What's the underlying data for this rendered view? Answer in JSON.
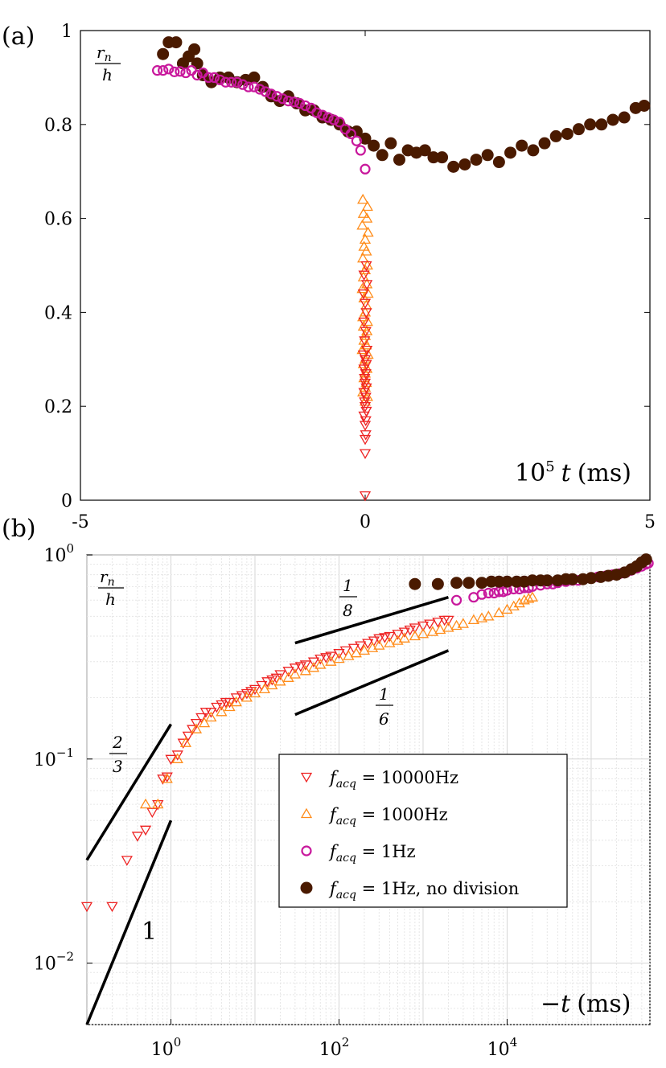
{
  "chart_data": [
    {
      "panel": "(a)",
      "type": "scatter",
      "xlabel": "10⁵ t (ms)",
      "ylabel": "rₙ / h",
      "xlim": [
        -5,
        5
      ],
      "ylim": [
        0,
        1
      ],
      "xticks": [
        "-5",
        "0",
        "5"
      ],
      "yticks": [
        "0",
        "0.2",
        "0.4",
        "0.6",
        "0.8",
        "1"
      ],
      "series": [
        {
          "name": "f_acq = 1Hz, no division",
          "marker": "filled-circle",
          "color": "#4a1a00",
          "x": [
            -3.55,
            -3.45,
            -3.32,
            -3.2,
            -3.1,
            -3.0,
            -2.95,
            -2.85,
            -2.7,
            -2.55,
            -2.4,
            -2.25,
            -2.1,
            -1.95,
            -1.8,
            -1.65,
            -1.5,
            -1.35,
            -1.2,
            -1.05,
            -0.9,
            -0.75,
            -0.6,
            -0.45,
            -0.3,
            -0.15,
            0.0,
            0.15,
            0.3,
            0.45,
            0.6,
            0.75,
            0.9,
            1.05,
            1.2,
            1.35,
            1.55,
            1.75,
            1.95,
            2.15,
            2.35,
            2.55,
            2.75,
            2.95,
            3.15,
            3.35,
            3.55,
            3.75,
            3.95,
            4.15,
            4.35,
            4.55,
            4.75,
            4.9
          ],
          "y": [
            0.95,
            0.975,
            0.975,
            0.93,
            0.945,
            0.96,
            0.93,
            0.905,
            0.89,
            0.9,
            0.9,
            0.89,
            0.895,
            0.9,
            0.88,
            0.86,
            0.85,
            0.86,
            0.845,
            0.83,
            0.83,
            0.815,
            0.81,
            0.8,
            0.785,
            0.785,
            0.77,
            0.755,
            0.735,
            0.76,
            0.725,
            0.745,
            0.74,
            0.745,
            0.73,
            0.73,
            0.71,
            0.715,
            0.725,
            0.735,
            0.72,
            0.74,
            0.755,
            0.745,
            0.76,
            0.775,
            0.78,
            0.79,
            0.8,
            0.8,
            0.81,
            0.815,
            0.835,
            0.84
          ]
        },
        {
          "name": "f_acq = 1Hz",
          "marker": "open-circle",
          "color": "#c8189c",
          "x": [
            -3.65,
            -3.55,
            -3.45,
            -3.35,
            -3.25,
            -3.15,
            -3.05,
            -2.95,
            -2.85,
            -2.75,
            -2.65,
            -2.55,
            -2.45,
            -2.35,
            -2.25,
            -2.15,
            -2.05,
            -1.95,
            -1.85,
            -1.75,
            -1.65,
            -1.55,
            -1.45,
            -1.35,
            -1.25,
            -1.15,
            -1.05,
            -0.95,
            -0.85,
            -0.75,
            -0.65,
            -0.55,
            -0.45,
            -0.35,
            -0.25,
            -0.15,
            -0.08,
            0.0
          ],
          "y": [
            0.915,
            0.915,
            0.918,
            0.912,
            0.913,
            0.91,
            0.915,
            0.905,
            0.91,
            0.9,
            0.9,
            0.895,
            0.89,
            0.89,
            0.89,
            0.885,
            0.88,
            0.88,
            0.875,
            0.87,
            0.865,
            0.86,
            0.855,
            0.85,
            0.848,
            0.845,
            0.84,
            0.835,
            0.825,
            0.82,
            0.815,
            0.81,
            0.805,
            0.79,
            0.78,
            0.765,
            0.745,
            0.705
          ]
        },
        {
          "name": "f_acq = 1000Hz",
          "marker": "triangle-up",
          "color": "#ff8c1a",
          "x": [
            -0.04,
            0.04,
            -0.03,
            0.03,
            -0.05,
            0.05,
            0.0,
            -0.02,
            0.02,
            -0.04,
            0.04,
            0.0,
            -0.03,
            0.03,
            -0.05,
            0.05,
            -0.02,
            0.02,
            0.0,
            -0.04,
            0.04,
            -0.03,
            0.03,
            0.0,
            -0.02,
            0.02,
            -0.05,
            0.05,
            0.0,
            -0.03,
            0.03,
            0.0,
            -0.02,
            0.02,
            0.0,
            -0.04,
            0.04,
            0.0
          ],
          "y": [
            0.64,
            0.625,
            0.61,
            0.6,
            0.585,
            0.57,
            0.555,
            0.54,
            0.53,
            0.515,
            0.5,
            0.49,
            0.475,
            0.46,
            0.45,
            0.44,
            0.43,
            0.415,
            0.4,
            0.39,
            0.38,
            0.37,
            0.36,
            0.35,
            0.34,
            0.33,
            0.32,
            0.31,
            0.3,
            0.29,
            0.28,
            0.27,
            0.26,
            0.25,
            0.24,
            0.23,
            0.22,
            0.21
          ]
        },
        {
          "name": "f_acq = 10000Hz",
          "marker": "triangle-down",
          "color": "#ee2222",
          "x": [
            0.02,
            -0.02,
            0.03,
            -0.03,
            0.0,
            0.02,
            -0.02,
            0.01,
            -0.01,
            0.03,
            -0.03,
            0.0,
            0.02,
            -0.02,
            0.01,
            -0.01,
            0.0,
            0.02,
            -0.02,
            0.01,
            -0.01,
            0.0,
            0.02,
            -0.02,
            0.01,
            0.0,
            0.01,
            0.0,
            0.0,
            0.0
          ],
          "y": [
            0.5,
            0.48,
            0.46,
            0.44,
            0.42,
            0.4,
            0.38,
            0.36,
            0.34,
            0.32,
            0.31,
            0.3,
            0.29,
            0.28,
            0.27,
            0.26,
            0.25,
            0.24,
            0.23,
            0.22,
            0.21,
            0.2,
            0.19,
            0.18,
            0.17,
            0.16,
            0.14,
            0.13,
            0.1,
            0.01
          ]
        }
      ]
    },
    {
      "panel": "(b)",
      "type": "scatter",
      "xscale": "log",
      "yscale": "log",
      "xlabel": "−t (ms)",
      "ylabel": "rₙ / h",
      "xlim": [
        0.1,
        500000
      ],
      "ylim": [
        0.005,
        1
      ],
      "xticks": [
        {
          "base": "10",
          "exp": "0",
          "value": 1
        },
        {
          "base": "10",
          "exp": "2",
          "value": 100
        },
        {
          "base": "10",
          "exp": "4",
          "value": 10000
        }
      ],
      "yticks": [
        {
          "base": "10",
          "exp": "0",
          "value": 1
        },
        {
          "base": "10",
          "exp": "−1",
          "value": 0.1
        },
        {
          "base": "10",
          "exp": "−2",
          "value": 0.01
        }
      ],
      "grid": true,
      "legend_position": "center-right",
      "series": [
        {
          "name": "f_acq = 10000Hz",
          "marker": "triangle-down",
          "color": "#ee2222",
          "x": [
            0.1,
            0.2,
            0.3,
            0.4,
            0.5,
            0.6,
            0.7,
            0.8,
            0.9,
            1.0,
            1.2,
            1.4,
            1.6,
            1.8,
            2.0,
            2.3,
            2.6,
            3.0,
            3.5,
            4,
            4.5,
            5,
            6,
            7,
            8,
            9,
            10,
            12,
            14,
            16,
            18,
            20,
            25,
            30,
            35,
            40,
            50,
            60,
            70,
            80,
            100,
            120,
            150,
            180,
            220,
            260,
            300,
            350,
            400,
            500,
            600,
            700,
            800,
            1000,
            1200,
            1500,
            1800,
            2000
          ],
          "y": [
            0.019,
            0.019,
            0.032,
            0.042,
            0.045,
            0.055,
            0.06,
            0.08,
            0.082,
            0.1,
            0.105,
            0.12,
            0.13,
            0.14,
            0.15,
            0.16,
            0.17,
            0.17,
            0.18,
            0.185,
            0.19,
            0.19,
            0.2,
            0.205,
            0.21,
            0.215,
            0.22,
            0.23,
            0.24,
            0.245,
            0.25,
            0.26,
            0.27,
            0.28,
            0.285,
            0.29,
            0.3,
            0.31,
            0.315,
            0.32,
            0.33,
            0.34,
            0.35,
            0.36,
            0.37,
            0.38,
            0.39,
            0.395,
            0.4,
            0.41,
            0.42,
            0.43,
            0.44,
            0.45,
            0.46,
            0.47,
            0.48,
            0.48
          ]
        },
        {
          "name": "f_acq = 1000Hz",
          "marker": "triangle-up",
          "color": "#ff8c1a",
          "x": [
            0.5,
            0.7,
            0.9,
            1.2,
            1.5,
            2,
            2.5,
            3,
            4,
            5,
            6,
            8,
            10,
            13,
            16,
            20,
            25,
            30,
            40,
            50,
            60,
            80,
            100,
            130,
            160,
            200,
            250,
            300,
            400,
            500,
            600,
            800,
            1000,
            1300,
            1600,
            2000,
            2500,
            3000,
            4000,
            5000,
            6000,
            8000,
            10000,
            12000,
            14000,
            16000,
            18000,
            20000
          ],
          "y": [
            0.06,
            0.06,
            0.08,
            0.1,
            0.12,
            0.14,
            0.15,
            0.16,
            0.17,
            0.18,
            0.19,
            0.2,
            0.21,
            0.22,
            0.23,
            0.24,
            0.25,
            0.26,
            0.27,
            0.28,
            0.29,
            0.3,
            0.31,
            0.32,
            0.33,
            0.34,
            0.35,
            0.36,
            0.37,
            0.38,
            0.39,
            0.4,
            0.41,
            0.42,
            0.43,
            0.44,
            0.45,
            0.46,
            0.48,
            0.49,
            0.5,
            0.52,
            0.54,
            0.56,
            0.58,
            0.6,
            0.61,
            0.62
          ]
        },
        {
          "name": "f_acq = 1Hz",
          "marker": "open-circle",
          "color": "#c8189c",
          "x": [
            2500,
            4000,
            5000,
            6000,
            7000,
            8000,
            9000,
            10000,
            12000,
            14000,
            16000,
            18000,
            20000,
            25000,
            30000,
            35000,
            40000,
            50000,
            60000,
            70000,
            80000,
            100000,
            120000,
            150000,
            180000,
            220000,
            260000,
            300000,
            350000,
            400000,
            450000,
            480000
          ],
          "y": [
            0.6,
            0.62,
            0.64,
            0.65,
            0.65,
            0.66,
            0.66,
            0.67,
            0.68,
            0.68,
            0.69,
            0.69,
            0.7,
            0.71,
            0.72,
            0.72,
            0.73,
            0.74,
            0.75,
            0.75,
            0.76,
            0.77,
            0.78,
            0.79,
            0.8,
            0.81,
            0.82,
            0.84,
            0.86,
            0.88,
            0.9,
            0.91
          ]
        },
        {
          "name": "f_acq = 1Hz, no division",
          "marker": "filled-circle",
          "color": "#4a1a00",
          "x": [
            800,
            1500,
            2500,
            3500,
            5000,
            6500,
            8000,
            10000,
            13000,
            16000,
            20000,
            25000,
            30000,
            40000,
            50000,
            60000,
            80000,
            100000,
            130000,
            160000,
            200000,
            250000,
            300000,
            350000,
            400000,
            450000
          ],
          "y": [
            0.72,
            0.72,
            0.73,
            0.73,
            0.73,
            0.74,
            0.74,
            0.74,
            0.74,
            0.74,
            0.75,
            0.75,
            0.75,
            0.75,
            0.76,
            0.76,
            0.76,
            0.77,
            0.78,
            0.79,
            0.8,
            0.82,
            0.85,
            0.88,
            0.92,
            0.95
          ]
        }
      ],
      "slope_lines": [
        {
          "label_num": "2",
          "label_den": "3",
          "x": [
            0.1,
            1.0
          ],
          "y": [
            0.032,
            0.148
          ]
        },
        {
          "label": "1",
          "x": [
            0.1,
            1.0
          ],
          "y": [
            0.005,
            0.05
          ]
        },
        {
          "label_num": "1",
          "label_den": "8",
          "x": [
            30,
            2000
          ],
          "y": [
            0.37,
            0.62
          ]
        },
        {
          "label_num": "1",
          "label_den": "6",
          "x": [
            30,
            2000
          ],
          "y": [
            0.165,
            0.34
          ]
        }
      ]
    }
  ],
  "legend": {
    "items": [
      {
        "sym": "f",
        "sub": "acq",
        "rest": " = 10000Hz",
        "marker": "triangle-down",
        "color": "#ee2222"
      },
      {
        "sym": "f",
        "sub": "acq",
        "rest": " = 1000Hz",
        "marker": "triangle-up",
        "color": "#ff8c1a"
      },
      {
        "sym": "f",
        "sub": "acq",
        "rest": " = 1Hz",
        "marker": "open-circle",
        "color": "#c8189c"
      },
      {
        "sym": "f",
        "sub": "acq",
        "rest": " = 1Hz, no division",
        "marker": "filled-circle",
        "color": "#4a1a00"
      }
    ]
  },
  "labels": {
    "panel_a": "(a)",
    "panel_b": "(b)",
    "a_xlabel_base": "10",
    "a_xlabel_exp": "5",
    "a_xlabel_var": "t",
    "a_xlabel_unit": "(ms)",
    "b_xlabel_minus": "−",
    "b_xlabel_var": "t",
    "b_xlabel_unit": "(ms)",
    "ylabel_num": "r",
    "ylabel_sub": "n",
    "ylabel_den": "h"
  }
}
